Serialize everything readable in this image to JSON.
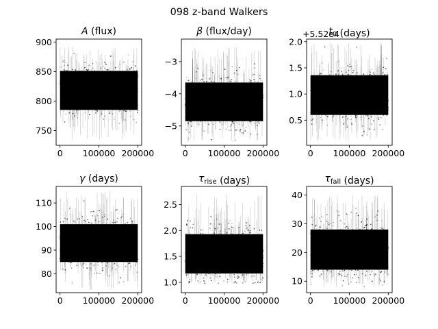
{
  "figure": {
    "suptitle": "098 z-band Walkers"
  },
  "chart_data": [
    {
      "type": "scatter",
      "title": "A (flux)",
      "title_parts": [
        {
          "t": "A",
          "italic": true
        },
        {
          "t": " (flux)"
        }
      ],
      "xlim": [
        -10000,
        210000
      ],
      "ylim": [
        725,
        905
      ],
      "xticks": [
        0,
        100000,
        200000
      ],
      "xtick_labels": [
        "0",
        "100000",
        "200000"
      ],
      "yticks": [
        750,
        800,
        850,
        900
      ],
      "ytick_labels": [
        "750",
        "800",
        "850",
        "900"
      ],
      "offset_text": "",
      "band": {
        "center": 818,
        "dense_half_width": 33,
        "outlier_min": 735,
        "outlier_max": 893
      },
      "n_steps": 200000
    },
    {
      "type": "scatter",
      "title": "β (flux/day)",
      "title_parts": [
        {
          "t": "β",
          "italic": true
        },
        {
          "t": " (flux/day)"
        }
      ],
      "xlim": [
        -10000,
        210000
      ],
      "ylim": [
        -5.6,
        -2.3
      ],
      "xticks": [
        0,
        100000,
        200000
      ],
      "xtick_labels": [
        "0",
        "100000",
        "200000"
      ],
      "yticks": [
        -5,
        -4,
        -3
      ],
      "ytick_labels": [
        "−5",
        "−4",
        "−3"
      ],
      "offset_text": "",
      "band": {
        "center": -4.25,
        "dense_half_width": 0.6,
        "outlier_min": -5.5,
        "outlier_max": -2.5
      },
      "n_steps": 200000
    },
    {
      "type": "scatter",
      "title": "t0 (days)",
      "title_parts": [
        {
          "t": "t",
          "italic": true
        },
        {
          "t": "0",
          "sub": true
        },
        {
          "t": " (days)"
        }
      ],
      "xlim": [
        -10000,
        210000
      ],
      "ylim": [
        0.02,
        2.05
      ],
      "xticks": [
        0,
        100000,
        200000
      ],
      "xtick_labels": [
        "0",
        "100000",
        "200000"
      ],
      "yticks": [
        0.5,
        1.0,
        1.5,
        2.0
      ],
      "ytick_labels": [
        "0.5",
        "1.0",
        "1.5",
        "2.0"
      ],
      "offset_text": "+5.52e4",
      "band": {
        "center": 0.98,
        "dense_half_width": 0.38,
        "outlier_min": 0.1,
        "outlier_max": 1.98
      },
      "n_steps": 200000
    },
    {
      "type": "scatter",
      "title": "γ (days)",
      "title_parts": [
        {
          "t": "γ",
          "italic": true
        },
        {
          "t": " (days)"
        }
      ],
      "xlim": [
        -10000,
        210000
      ],
      "ylim": [
        72,
        117
      ],
      "xticks": [
        0,
        100000,
        200000
      ],
      "xtick_labels": [
        "0",
        "100000",
        "200000"
      ],
      "yticks": [
        80,
        90,
        100,
        110
      ],
      "ytick_labels": [
        "80",
        "90",
        "100",
        "110"
      ],
      "offset_text": "",
      "band": {
        "center": 93,
        "dense_half_width": 8,
        "outlier_min": 73,
        "outlier_max": 115
      },
      "n_steps": 200000
    },
    {
      "type": "scatter",
      "title": "τrise (days)",
      "title_parts": [
        {
          "t": "τ",
          "italic": true
        },
        {
          "t": "rise",
          "sub": true
        },
        {
          "t": " (days)"
        }
      ],
      "xlim": [
        -10000,
        210000
      ],
      "ylim": [
        0.8,
        2.85
      ],
      "xticks": [
        0,
        100000,
        200000
      ],
      "xtick_labels": [
        "0",
        "100000",
        "200000"
      ],
      "yticks": [
        1.0,
        1.5,
        2.0,
        2.5
      ],
      "ytick_labels": [
        "1.0",
        "1.5",
        "2.0",
        "2.5"
      ],
      "offset_text": "",
      "band": {
        "center": 1.55,
        "dense_half_width": 0.38,
        "outlier_min": 0.98,
        "outlier_max": 2.72
      },
      "n_steps": 200000
    },
    {
      "type": "scatter",
      "title": "τfall (days)",
      "title_parts": [
        {
          "t": "τ",
          "italic": true
        },
        {
          "t": "fall",
          "sub": true
        },
        {
          "t": " (days)"
        }
      ],
      "xlim": [
        -10000,
        210000
      ],
      "ylim": [
        6,
        43
      ],
      "xticks": [
        0,
        100000,
        200000
      ],
      "xtick_labels": [
        "0",
        "100000",
        "200000"
      ],
      "yticks": [
        10,
        20,
        30,
        40
      ],
      "ytick_labels": [
        "10",
        "20",
        "30",
        "40"
      ],
      "offset_text": "",
      "band": {
        "center": 21,
        "dense_half_width": 7,
        "outlier_min": 8,
        "outlier_max": 40
      },
      "n_steps": 200000
    }
  ]
}
